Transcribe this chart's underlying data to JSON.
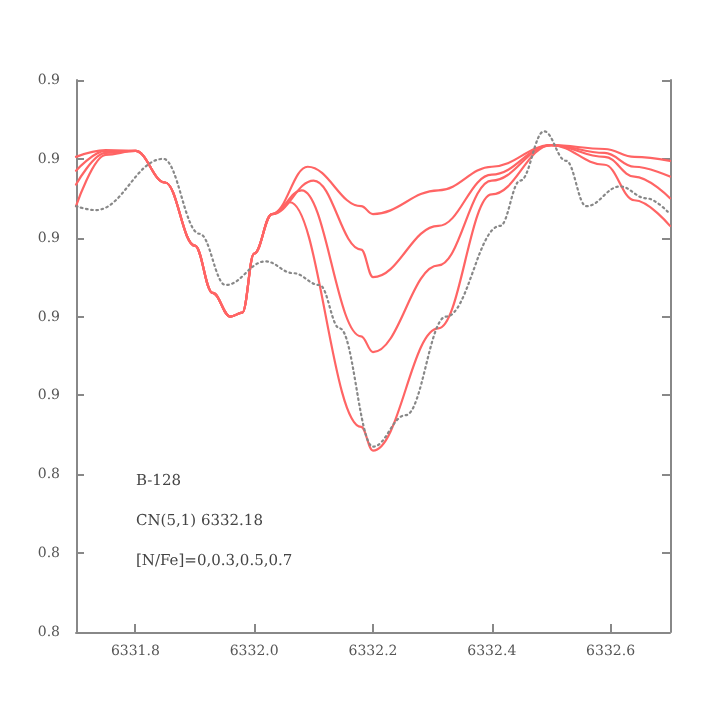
{
  "chart_data": {
    "type": "line",
    "annotations": [
      "B-128",
      "CN(5,1) 6332.18",
      "[N/Fe]=0,0.3,0.5,0.7"
    ],
    "xlim": [
      6331.7,
      6332.7
    ],
    "xticks": [
      {
        "value": 6331.8,
        "label": "6331.8"
      },
      {
        "value": 6332.0,
        "label": "6332.0"
      },
      {
        "value": 6332.2,
        "label": "6332.2"
      },
      {
        "value": 6332.4,
        "label": "6332.4"
      },
      {
        "value": 6332.6,
        "label": "6332.6"
      }
    ],
    "ylim": [
      0.8,
      0.94
    ],
    "yticks": [
      {
        "value": 0.8,
        "label": "0.8"
      },
      {
        "value": 0.82,
        "label": "0.8"
      },
      {
        "value": 0.84,
        "label": "0.8"
      },
      {
        "value": 0.86,
        "label": "0.9"
      },
      {
        "value": 0.88,
        "label": "0.9"
      },
      {
        "value": 0.9,
        "label": "0.9"
      },
      {
        "value": 0.92,
        "label": "0.9"
      },
      {
        "value": 0.94,
        "label": "0.9"
      }
    ],
    "marker": "none",
    "series": [
      {
        "color": "#ff6464",
        "line_style": "solid",
        "x": [
          6331.7,
          6331.75,
          6331.8,
          6331.85,
          6331.9,
          6331.93,
          6331.96,
          6331.98,
          6332.0,
          6332.03,
          6332.09,
          6332.18,
          6332.2,
          6332.31,
          6332.4,
          6332.5,
          6332.59,
          6332.64,
          6332.7
        ],
        "values": [
          0.9205,
          0.9222,
          0.922,
          0.914,
          0.898,
          0.886,
          0.88,
          0.881,
          0.896,
          0.906,
          0.918,
          0.908,
          0.906,
          0.912,
          0.918,
          0.9235,
          0.9225,
          0.9205,
          0.9195
        ]
      },
      {
        "color": "#ff6464",
        "line_style": "solid",
        "x": [
          6331.7,
          6331.75,
          6331.8,
          6331.85,
          6331.9,
          6331.93,
          6331.96,
          6331.98,
          6332.0,
          6332.03,
          6332.1,
          6332.18,
          6332.2,
          6332.31,
          6332.4,
          6332.5,
          6332.59,
          6332.64,
          6332.7
        ],
        "values": [
          0.917,
          0.922,
          0.922,
          0.914,
          0.898,
          0.886,
          0.88,
          0.881,
          0.896,
          0.906,
          0.9145,
          0.897,
          0.89,
          0.903,
          0.916,
          0.9235,
          0.9215,
          0.918,
          0.9155
        ]
      },
      {
        "color": "#ff6464",
        "line_style": "solid",
        "x": [
          6331.7,
          6331.75,
          6331.8,
          6331.85,
          6331.9,
          6331.93,
          6331.96,
          6331.98,
          6332.0,
          6332.03,
          6332.08,
          6332.18,
          6332.2,
          6332.31,
          6332.4,
          6332.5,
          6332.59,
          6332.64,
          6332.7
        ],
        "values": [
          0.9135,
          0.9215,
          0.922,
          0.914,
          0.898,
          0.886,
          0.88,
          0.881,
          0.896,
          0.906,
          0.912,
          0.875,
          0.871,
          0.893,
          0.9145,
          0.9235,
          0.9205,
          0.9155,
          0.91
        ]
      },
      {
        "color": "#ff6464",
        "line_style": "solid",
        "x": [
          6331.7,
          6331.75,
          6331.8,
          6331.85,
          6331.9,
          6331.93,
          6331.96,
          6331.98,
          6332.0,
          6332.03,
          6332.06,
          6332.18,
          6332.2,
          6332.31,
          6332.4,
          6332.5,
          6332.59,
          6332.64,
          6332.7
        ],
        "values": [
          0.908,
          0.921,
          0.922,
          0.914,
          0.898,
          0.886,
          0.88,
          0.881,
          0.896,
          0.906,
          0.909,
          0.852,
          0.846,
          0.877,
          0.911,
          0.9235,
          0.9185,
          0.9095,
          0.903
        ]
      },
      {
        "color": "#888888",
        "line_style": "dotted",
        "x": [
          6331.7,
          6331.733,
          6331.847,
          6331.908,
          6331.952,
          6332.019,
          6332.066,
          6332.11,
          6332.144,
          6332.2,
          6332.255,
          6332.323,
          6332.414,
          6332.448,
          6332.488,
          6332.525,
          6332.559,
          6332.616,
          6332.66,
          6332.7
        ],
        "values": [
          0.908,
          0.907,
          0.92,
          0.901,
          0.888,
          0.894,
          0.891,
          0.888,
          0.877,
          0.847,
          0.855,
          0.88,
          0.903,
          0.9145,
          0.927,
          0.9195,
          0.908,
          0.913,
          0.91,
          0.906
        ]
      }
    ]
  }
}
